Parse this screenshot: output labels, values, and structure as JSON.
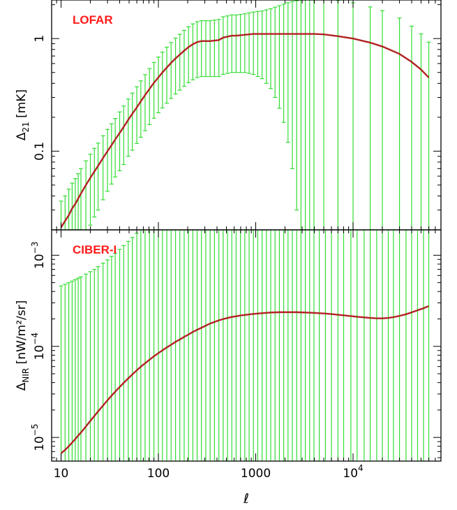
{
  "chart_data": [
    {
      "type": "line",
      "panel": "top",
      "label": "LOFAR",
      "label_color": "#ff1a1a",
      "ylabel_main": "Δ",
      "ylabel_sub": "21",
      "ylabel_unit": "[mK]",
      "x_scale": "log",
      "y_scale": "log",
      "xlim": [
        8,
        80000
      ],
      "ylim": [
        0.02,
        2.2
      ],
      "yticks": [
        {
          "value": 0.1,
          "text": "0.1"
        },
        {
          "value": 1,
          "text": "1"
        }
      ],
      "line_color": "#b22222",
      "errorbar_color": "#33dd33",
      "x": [
        10,
        11,
        12,
        13,
        14,
        15,
        16,
        18,
        20,
        22,
        24,
        27,
        30,
        33,
        36,
        40,
        44,
        49,
        54,
        60,
        66,
        73,
        81,
        90,
        100,
        110,
        122,
        135,
        150,
        166,
        184,
        204,
        226,
        250,
        277,
        307,
        340,
        377,
        418,
        463,
        513,
        568,
        629,
        697,
        772,
        855,
        947,
        1049,
        1162,
        1287,
        1426,
        1580,
        1750,
        1938,
        2147,
        2378,
        2634,
        2918,
        3232,
        3580,
        3966,
        5000,
        7000,
        10000,
        15000,
        20000,
        30000,
        40000,
        50000,
        60000
      ],
      "y": [
        0.021,
        0.024,
        0.027,
        0.031,
        0.034,
        0.038,
        0.042,
        0.05,
        0.058,
        0.066,
        0.074,
        0.087,
        0.1,
        0.113,
        0.127,
        0.145,
        0.164,
        0.19,
        0.215,
        0.245,
        0.277,
        0.315,
        0.357,
        0.405,
        0.452,
        0.5,
        0.553,
        0.608,
        0.666,
        0.72,
        0.78,
        0.84,
        0.89,
        0.93,
        0.95,
        0.95,
        0.95,
        0.96,
        0.97,
        1.02,
        1.04,
        1.06,
        1.06,
        1.07,
        1.08,
        1.09,
        1.1,
        1.1,
        1.1,
        1.1,
        1.1,
        1.1,
        1.1,
        1.1,
        1.1,
        1.1,
        1.1,
        1.1,
        1.1,
        1.1,
        1.1,
        1.09,
        1.05,
        1.0,
        0.92,
        0.85,
        0.73,
        0.62,
        0.53,
        0.45
      ],
      "err_lo": [
        0.015,
        0.016,
        0.019,
        0.021,
        0.023,
        0.025,
        0.028,
        0.032,
        0.036,
        0.04,
        0.044,
        0.05,
        0.056,
        0.062,
        0.068,
        0.078,
        0.088,
        0.1,
        0.113,
        0.128,
        0.144,
        0.163,
        0.185,
        0.209,
        0.233,
        0.258,
        0.286,
        0.314,
        0.344,
        0.372,
        0.403,
        0.434,
        0.46,
        0.48,
        0.49,
        0.49,
        0.49,
        0.5,
        0.51,
        0.54,
        0.55,
        0.56,
        0.56,
        0.57,
        0.58,
        0.6,
        0.62,
        0.64,
        0.66,
        0.7,
        0.74,
        0.8,
        0.86,
        0.92,
        0.98,
        1.03,
        1.07,
        1.1,
        1.13,
        1.15,
        1.18,
        1.2,
        1.13,
        1.08,
        0.99,
        0.92,
        0.79,
        0.67,
        0.57,
        0.48
      ],
      "err_hi": [
        0.015,
        0.016,
        0.019,
        0.021,
        0.023,
        0.025,
        0.028,
        0.032,
        0.036,
        0.04,
        0.044,
        0.05,
        0.056,
        0.062,
        0.068,
        0.078,
        0.088,
        0.1,
        0.113,
        0.128,
        0.144,
        0.163,
        0.185,
        0.209,
        0.233,
        0.258,
        0.286,
        0.314,
        0.344,
        0.372,
        0.403,
        0.434,
        0.46,
        0.48,
        0.49,
        0.49,
        0.49,
        0.5,
        0.51,
        0.54,
        0.55,
        0.56,
        0.56,
        0.57,
        0.58,
        0.6,
        0.62,
        0.64,
        0.66,
        0.7,
        0.74,
        0.8,
        0.86,
        0.92,
        0.98,
        1.03,
        1.07,
        1.1,
        1.13,
        1.15,
        1.18,
        1.2,
        1.13,
        1.08,
        0.99,
        0.92,
        0.79,
        0.67,
        0.57,
        0.48
      ]
    },
    {
      "type": "line",
      "panel": "bottom",
      "label": "CIBER-I",
      "label_color": "#ff1a1a",
      "ylabel_main": "Δ",
      "ylabel_sub": "NIR",
      "ylabel_unit": "[nW/m²/sr]",
      "x_scale": "log",
      "y_scale": "log",
      "xlim": [
        8,
        80000
      ],
      "ylim": [
        5.5e-06,
        0.0019
      ],
      "yticks": [
        {
          "value": 1e-05,
          "base": "10",
          "exp": "−5"
        },
        {
          "value": 0.0001,
          "base": "10",
          "exp": "−4"
        },
        {
          "value": 0.001,
          "base": "10",
          "exp": "−3"
        }
      ],
      "xticks": [
        {
          "value": 10,
          "text": "10"
        },
        {
          "value": 100,
          "text": "100"
        },
        {
          "value": 1000,
          "text": "1000"
        },
        {
          "value": 10000,
          "base": "10",
          "exp": "4"
        }
      ],
      "xlabel": "ℓ",
      "line_color": "#b22222",
      "errorbar_color": "#33dd33",
      "x": [
        10,
        11,
        12,
        13,
        14,
        15,
        16,
        18,
        20,
        22,
        24,
        27,
        30,
        33,
        36,
        40,
        44,
        49,
        54,
        60,
        66,
        73,
        81,
        90,
        100,
        110,
        122,
        135,
        150,
        166,
        184,
        204,
        226,
        250,
        277,
        307,
        340,
        377,
        418,
        463,
        513,
        568,
        629,
        697,
        772,
        855,
        947,
        1049,
        1162,
        1287,
        1426,
        1580,
        1750,
        1938,
        2147,
        2378,
        2634,
        2918,
        3232,
        3580,
        3966,
        4500,
        5200,
        6000,
        7000,
        8000,
        9500,
        11000,
        13000,
        15000,
        17500,
        20000,
        23000,
        26000,
        30000,
        35000,
        40000,
        46000,
        53000,
        60000
      ],
      "y": [
        6.7e-06,
        7.3e-06,
        8e-06,
        8.8e-06,
        9.6e-06,
        1.05e-05,
        1.13e-05,
        1.32e-05,
        1.52e-05,
        1.72e-05,
        1.93e-05,
        2.24e-05,
        2.56e-05,
        2.87e-05,
        3.18e-05,
        3.58e-05,
        3.97e-05,
        4.45e-05,
        4.92e-05,
        5.46e-05,
        5.97e-05,
        6.53e-05,
        7.13e-05,
        7.78e-05,
        8.43e-05,
        9.04e-05,
        9.73e-05,
        0.000104,
        0.000112,
        0.000119,
        0.000127,
        0.000135,
        0.000144,
        0.000152,
        0.00016,
        0.000169,
        0.000178,
        0.000185,
        0.000193,
        0.000199,
        0.000205,
        0.00021,
        0.000214,
        0.000218,
        0.000221,
        0.000224,
        0.000227,
        0.000229,
        0.000231,
        0.000233,
        0.000235,
        0.000236,
        0.000237,
        0.000237,
        0.000237,
        0.000237,
        0.000237,
        0.000236,
        0.000235,
        0.000234,
        0.000233,
        0.000231,
        0.000229,
        0.000226,
        0.000222,
        0.000219,
        0.000215,
        0.000211,
        0.000208,
        0.000205,
        0.000203,
        0.000203,
        0.000205,
        0.000209,
        0.000216,
        0.000225,
        0.000236,
        0.000249,
        0.000262,
        0.000277
      ],
      "err_lo": [
        6.7e-06,
        7.3e-06,
        8e-06,
        8.8e-06,
        9.6e-06,
        1.05e-05,
        1.13e-05,
        1.32e-05,
        1.52e-05,
        1.72e-05,
        1.93e-05,
        2.24e-05,
        2.56e-05,
        2.87e-05,
        3.18e-05,
        3.58e-05,
        3.97e-05,
        4.45e-05,
        4.92e-05,
        5.46e-05,
        5.97e-05,
        6.53e-05,
        7.13e-05,
        7.78e-05,
        8.43e-05,
        9.04e-05,
        9.73e-05,
        0.000104,
        0.000112,
        0.000119,
        0.000127,
        0.000135,
        0.000144,
        0.000152,
        0.00016,
        0.000169,
        0.000178,
        0.000185,
        0.000193,
        0.000199,
        0.000205,
        0.00021,
        0.000214,
        0.000218,
        0.000221,
        0.000224,
        0.000227,
        0.000229,
        0.000231,
        0.000233,
        0.000235,
        0.000236,
        0.000237,
        0.000237,
        0.000237,
        0.000237,
        0.000237,
        0.000236,
        0.000235,
        0.000234,
        0.000233,
        0.000231,
        0.000229,
        0.000226,
        0.000222,
        0.000219,
        0.000215,
        0.000211,
        0.000208,
        0.000205,
        0.000203,
        0.000203,
        0.000205,
        0.000209,
        0.000216,
        0.000225,
        0.000236,
        0.000249,
        0.000262,
        0.000277
      ],
      "y_hi": [
        0.00046,
        0.00048,
        0.0005,
        0.00052,
        0.00054,
        0.00056,
        0.00058,
        0.00062,
        0.00066,
        0.0007,
        0.00075,
        0.00082,
        0.00089,
        0.00097,
        0.00105,
        0.00116,
        0.00128,
        0.00142,
        0.00157,
        0.00174,
        0.0019,
        0.0019,
        0.0019,
        0.0019,
        0.0019,
        0.0019,
        0.0019,
        0.0019,
        0.0019,
        0.0019,
        0.0019,
        0.0019,
        0.0019,
        0.0019,
        0.0019,
        0.0019,
        0.0019,
        0.0019,
        0.0019,
        0.0019,
        0.0019,
        0.0019,
        0.0019,
        0.0019,
        0.0019,
        0.0019,
        0.0019,
        0.0019,
        0.0019,
        0.0019,
        0.0019,
        0.0019,
        0.0019,
        0.0019,
        0.0019,
        0.0019,
        0.0019,
        0.0019,
        0.0019,
        0.0019,
        0.0019,
        0.0019,
        0.0019,
        0.0019,
        0.0019,
        0.0019,
        0.0019,
        0.0019,
        0.0019,
        0.0019,
        0.0019,
        0.0019,
        0.0019,
        0.0019,
        0.0019,
        0.0019,
        0.0019,
        0.0019,
        0.0019,
        0.0019
      ]
    }
  ]
}
